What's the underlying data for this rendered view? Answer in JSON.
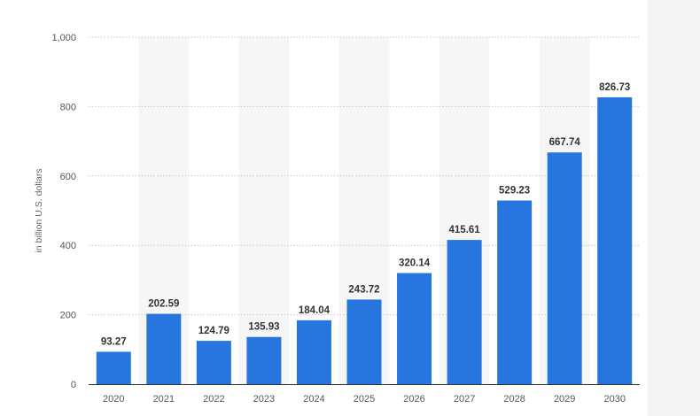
{
  "colors": {
    "bar": "#2775de",
    "band": "#f6f6f6",
    "grid": "#c8c8c8",
    "axis": "#333333",
    "background": "#ffffff"
  },
  "chart_data": {
    "type": "bar",
    "title": "",
    "xlabel": "",
    "ylabel": "in billion U.S. dollars",
    "categories": [
      "2020",
      "2021",
      "2022",
      "2023",
      "2024",
      "2025",
      "2026",
      "2027",
      "2028",
      "2029",
      "2030"
    ],
    "values": [
      93.27,
      202.59,
      124.79,
      135.93,
      184.04,
      243.72,
      320.14,
      415.61,
      529.23,
      667.74,
      826.73
    ],
    "value_labels": [
      "93.27",
      "202.59",
      "124.79",
      "135.93",
      "184.04",
      "243.72",
      "320.14",
      "415.61",
      "529.23",
      "667.74",
      "826.73"
    ],
    "ylim": [
      0,
      1000
    ],
    "y_ticks": [
      0,
      200,
      400,
      600,
      800,
      1000
    ],
    "y_tick_labels": [
      "0",
      "200",
      "400",
      "600",
      "800",
      "1,000"
    ],
    "grid": true,
    "alternating_bands": true,
    "legend": "none"
  }
}
